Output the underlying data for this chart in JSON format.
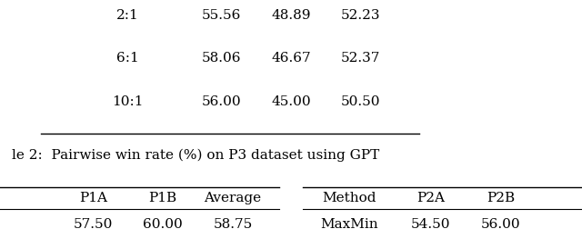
{
  "top_rows": [
    [
      "2:1",
      "55.56",
      "48.89",
      "52.23"
    ],
    [
      "6:1",
      "58.06",
      "46.67",
      "52.37"
    ],
    [
      "10:1",
      "56.00",
      "45.00",
      "50.50"
    ]
  ],
  "caption": "le 2:  Pairwise win rate (%) on P3 dataset using GPT",
  "left_header": [
    "",
    "P1A",
    "P1B",
    "Average"
  ],
  "left_first_row": [
    "",
    "57.50",
    "60.00",
    "58.75"
  ],
  "right_header": [
    "Method",
    "P2A",
    "P2B"
  ],
  "right_first_row": [
    "MaxMin",
    "54.50",
    "56.00"
  ],
  "bg_color": "#ffffff",
  "text_color": "#000000",
  "font_size": 11
}
